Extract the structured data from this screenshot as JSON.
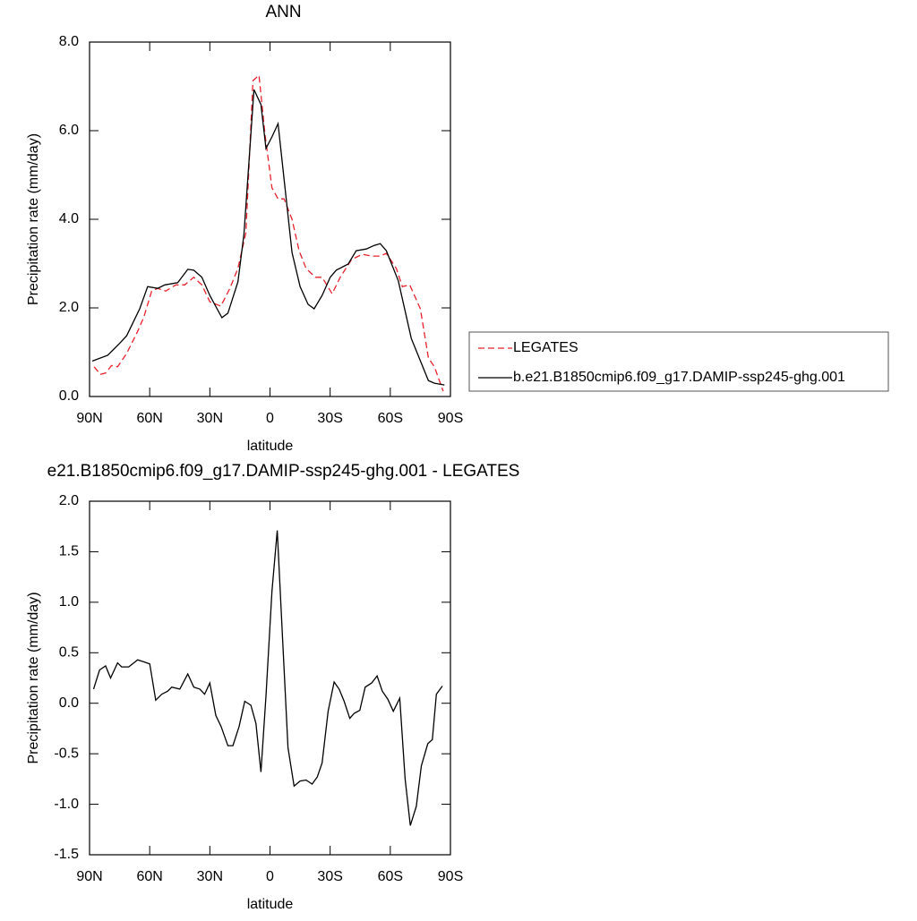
{
  "chart_data": [
    {
      "type": "line",
      "title": "ANN",
      "x_label": "latitude",
      "y_label": "Precipitation rate (mm/day)",
      "xlim": [
        90,
        -90
      ],
      "ylim": [
        0,
        8
      ],
      "xticks": [
        {
          "value": 90,
          "label": "90N"
        },
        {
          "value": 60,
          "label": "60N"
        },
        {
          "value": 30,
          "label": "30N"
        },
        0,
        {
          "value": -30,
          "label": "30S"
        },
        {
          "value": -60,
          "label": "60S"
        },
        {
          "value": -90,
          "label": "90S"
        }
      ],
      "yticks": [
        {
          "value": 0,
          "label": "0.0"
        },
        {
          "value": 2,
          "label": "2.0"
        },
        {
          "value": 4,
          "label": "4.0"
        },
        {
          "value": 6,
          "label": "6.0"
        },
        {
          "value": 8,
          "label": "8.0"
        }
      ],
      "legend": "right",
      "series": [
        {
          "name": "LEGATES",
          "color": "#e8212b",
          "dash": true,
          "x": [
            87.7,
            84.6,
            82,
            79,
            76,
            71.5,
            66,
            63,
            59,
            56,
            52,
            47,
            42.5,
            38,
            34,
            30,
            24.5,
            20,
            16,
            12,
            8.5,
            5.5,
            2.5,
            -1,
            -4,
            -7,
            -11,
            -14.5,
            -18,
            -22.6,
            -26,
            -31,
            -35,
            -40.7,
            -46,
            -50.7,
            -55,
            -58,
            -63,
            -66,
            -69.7,
            -75,
            -79,
            -82,
            -86.4
          ],
          "values": [
            0.67,
            0.5,
            0.53,
            0.7,
            0.67,
            0.97,
            1.47,
            1.78,
            2.38,
            2.44,
            2.38,
            2.52,
            2.52,
            2.69,
            2.52,
            2.14,
            2.04,
            2.44,
            2.89,
            3.7,
            7.13,
            7.25,
            5.92,
            4.71,
            4.46,
            4.46,
            4.0,
            3.29,
            2.89,
            2.69,
            2.69,
            2.32,
            2.69,
            3.09,
            3.21,
            3.17,
            3.17,
            3.23,
            2.89,
            2.48,
            2.52,
            1.98,
            0.87,
            0.67,
            0.12
          ]
        },
        {
          "name": "b.e21.B1850cmip6.f09_g17.DAMIP-ssp245-ghg.001",
          "color": "#000000",
          "dash": false,
          "x": [
            88.6,
            81,
            75,
            71.5,
            65,
            61,
            56,
            52.5,
            46,
            41,
            38,
            34,
            30,
            24,
            21,
            16,
            13,
            8,
            4.5,
            2,
            -1,
            -4,
            -7,
            -11,
            -15,
            -19,
            -22,
            -26,
            -30,
            -33,
            -39,
            -43,
            -48,
            -52,
            -55,
            -58,
            -64,
            -70.5,
            -79,
            -82,
            -87
          ],
          "values": [
            0.8,
            0.93,
            1.2,
            1.37,
            1.98,
            2.48,
            2.44,
            2.52,
            2.57,
            2.87,
            2.85,
            2.69,
            2.28,
            1.78,
            1.88,
            2.59,
            3.66,
            6.93,
            6.59,
            5.6,
            5.86,
            6.16,
            4.91,
            3.25,
            2.48,
            2.08,
            1.98,
            2.28,
            2.69,
            2.85,
            2.99,
            3.29,
            3.33,
            3.41,
            3.45,
            3.29,
            2.61,
            1.31,
            0.36,
            0.3,
            0.26
          ]
        }
      ]
    },
    {
      "type": "line",
      "title": "e21.B1850cmip6.f09_g17.DAMIP-ssp245-ghg.001 - LEGATES",
      "x_label": "latitude",
      "y_label": "Precipitation rate (mm/day)",
      "xlim": [
        90,
        -90
      ],
      "ylim": [
        -1.5,
        2
      ],
      "xticks": [
        {
          "value": 90,
          "label": "90N"
        },
        {
          "value": 60,
          "label": "60N"
        },
        {
          "value": 30,
          "label": "30N"
        },
        0,
        {
          "value": -30,
          "label": "30S"
        },
        {
          "value": -60,
          "label": "60S"
        },
        {
          "value": -90,
          "label": "90S"
        }
      ],
      "yticks": [
        {
          "value": -1.5,
          "label": "-1.5"
        },
        {
          "value": -1,
          "label": "-1.0"
        },
        {
          "value": -0.5,
          "label": "-0.5"
        },
        {
          "value": 0,
          "label": "0.0"
        },
        {
          "value": 0.5,
          "label": "0.5"
        },
        {
          "value": 1,
          "label": "1.0"
        },
        {
          "value": 1.5,
          "label": "1.5"
        },
        {
          "value": 2,
          "label": "2.0"
        }
      ],
      "series": [
        {
          "color": "#000000",
          "dash": false,
          "x": [
            88,
            85,
            82,
            79.5,
            76,
            74,
            70.5,
            66,
            63,
            60,
            57,
            54,
            51,
            49,
            45,
            41,
            38,
            35,
            32.6,
            30,
            27,
            24.4,
            21,
            18.5,
            15.4,
            12.6,
            9.5,
            7,
            4.5,
            2,
            -1,
            -3.6,
            -6.3,
            -9,
            -12,
            -15,
            -18,
            -21,
            -23.6,
            -26,
            -29,
            -32,
            -34.5,
            -37,
            -39.8,
            -42,
            -44.8,
            -47.5,
            -50.7,
            -53.4,
            -56,
            -58.8,
            -61.5,
            -64.7,
            -67.4,
            -70,
            -73,
            -75.5,
            -78.7,
            -81,
            -83,
            -86
          ],
          "values": [
            0.14,
            0.33,
            0.37,
            0.25,
            0.4,
            0.36,
            0.36,
            0.43,
            0.41,
            0.39,
            0.03,
            0.09,
            0.12,
            0.16,
            0.14,
            0.29,
            0.16,
            0.14,
            0.09,
            0.2,
            -0.12,
            -0.23,
            -0.42,
            -0.42,
            -0.23,
            0.02,
            -0.02,
            -0.2,
            -0.68,
            0.07,
            1.11,
            1.71,
            0.63,
            -0.44,
            -0.82,
            -0.77,
            -0.76,
            -0.8,
            -0.73,
            -0.59,
            -0.08,
            0.21,
            0.14,
            0.02,
            -0.15,
            -0.1,
            -0.07,
            0.16,
            0.2,
            0.27,
            0.12,
            0.04,
            -0.08,
            0.05,
            -0.75,
            -1.21,
            -1.02,
            -0.62,
            -0.4,
            -0.36,
            0.09,
            0.17
          ]
        }
      ]
    }
  ]
}
